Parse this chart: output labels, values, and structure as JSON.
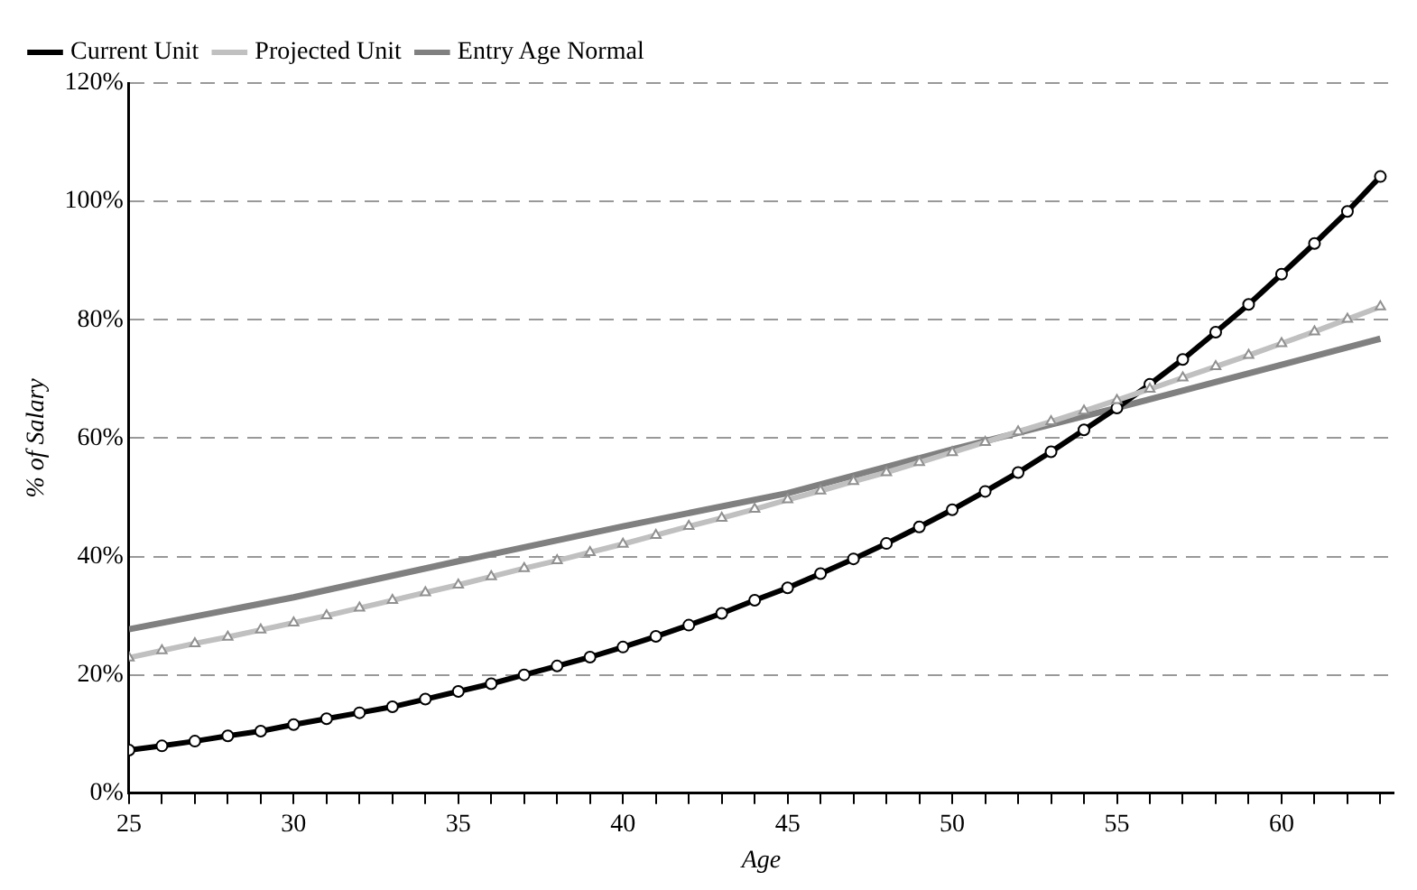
{
  "chart_data": {
    "type": "line",
    "xlabel": "Age",
    "ylabel": "% of Salary",
    "x": [
      25,
      26,
      27,
      28,
      29,
      30,
      31,
      32,
      33,
      34,
      35,
      36,
      37,
      38,
      39,
      40,
      41,
      42,
      43,
      44,
      45,
      46,
      47,
      48,
      49,
      50,
      51,
      52,
      53,
      54,
      55,
      56,
      57,
      58,
      59,
      60,
      61,
      62,
      63
    ],
    "series": [
      {
        "name": "Current Unit",
        "color": "#000000",
        "marker": "circle",
        "values": [
          7.3,
          8.0,
          8.8,
          9.7,
          10.5,
          11.6,
          12.6,
          13.6,
          14.6,
          15.9,
          17.2,
          18.5,
          20.0,
          21.5,
          23.0,
          24.7,
          26.5,
          28.4,
          30.4,
          32.6,
          34.7,
          37.1,
          39.6,
          42.2,
          45.0,
          47.9,
          51.0,
          54.2,
          57.7,
          61.4,
          65.1,
          69.1,
          73.3,
          77.9,
          82.6,
          87.7,
          92.9,
          98.3,
          104.2
        ]
      },
      {
        "name": "Projected Unit",
        "color": "#c0c0c0",
        "marker": "triangle",
        "values": [
          22.9,
          24.1,
          25.3,
          26.4,
          27.6,
          28.8,
          30.0,
          31.3,
          32.6,
          33.9,
          35.2,
          36.6,
          38.0,
          39.3,
          40.7,
          42.1,
          43.6,
          45.1,
          46.5,
          48.0,
          49.6,
          51.1,
          52.7,
          54.2,
          55.9,
          57.6,
          59.3,
          61.1,
          62.8,
          64.6,
          66.4,
          68.3,
          70.2,
          72.1,
          74.0,
          76.0,
          78.0,
          80.1,
          82.2
        ]
      },
      {
        "name": "Entry Age Normal",
        "color": "#808080",
        "marker": "none",
        "x": [
          25,
          30,
          35,
          40,
          45,
          50,
          55,
          60,
          63
        ],
        "values": [
          27.7,
          33.1,
          39.2,
          45.1,
          50.7,
          58.1,
          65.1,
          72.4,
          76.8
        ]
      }
    ],
    "xlim": [
      25,
      63.4
    ],
    "xticks": [
      25,
      {
        "value": 26,
        "label": null
      },
      {
        "value": 27,
        "label": null
      },
      {
        "value": 28,
        "label": null
      },
      {
        "value": 29,
        "label": null
      },
      30,
      {
        "value": 31,
        "label": null
      },
      {
        "value": 32,
        "label": null
      },
      {
        "value": 33,
        "label": null
      },
      {
        "value": 34,
        "label": null
      },
      35,
      {
        "value": 36,
        "label": null
      },
      {
        "value": 37,
        "label": null
      },
      {
        "value": 38,
        "label": null
      },
      {
        "value": 39,
        "label": null
      },
      40,
      {
        "value": 41,
        "label": null
      },
      {
        "value": 42,
        "label": null
      },
      {
        "value": 43,
        "label": null
      },
      {
        "value": 44,
        "label": null
      },
      45,
      {
        "value": 46,
        "label": null
      },
      {
        "value": 47,
        "label": null
      },
      {
        "value": 48,
        "label": null
      },
      {
        "value": 49,
        "label": null
      },
      50,
      {
        "value": 51,
        "label": null
      },
      {
        "value": 52,
        "label": null
      },
      {
        "value": 53,
        "label": null
      },
      {
        "value": 54,
        "label": null
      },
      55,
      {
        "value": 56,
        "label": null
      },
      {
        "value": 57,
        "label": null
      },
      {
        "value": 58,
        "label": null
      },
      {
        "value": 59,
        "label": null
      },
      60,
      {
        "value": 61,
        "label": null
      },
      {
        "value": 62,
        "label": null
      },
      {
        "value": 63,
        "label": null
      }
    ],
    "ylim": [
      0,
      120
    ],
    "yticks": [
      {
        "value": 0,
        "label": "0%"
      },
      {
        "value": 20,
        "label": "20%"
      },
      {
        "value": 40,
        "label": "40%"
      },
      {
        "value": 60,
        "label": "60%"
      },
      {
        "value": 80,
        "label": "80%"
      },
      {
        "value": 100,
        "label": "100%"
      },
      {
        "value": 120,
        "label": "120%"
      }
    ],
    "grid": "y",
    "legend": "top left",
    "line_style": "solid"
  }
}
